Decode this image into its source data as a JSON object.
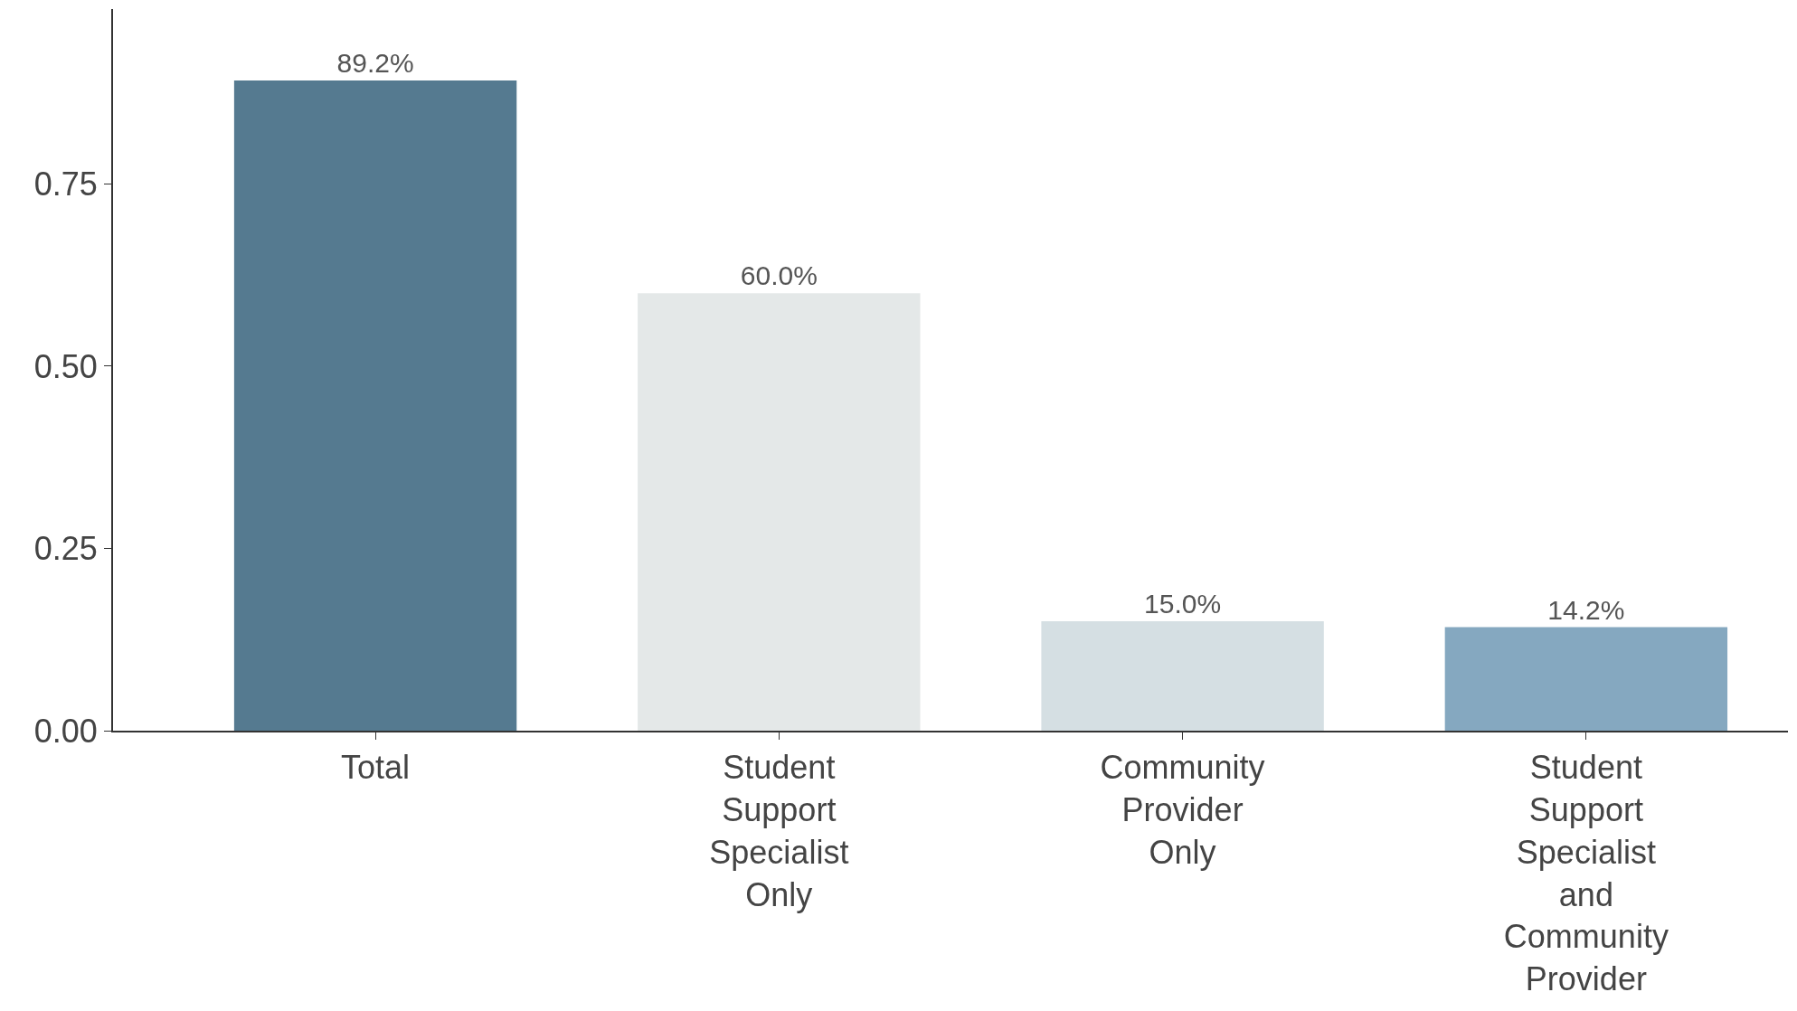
{
  "chart_data": {
    "type": "bar",
    "categories": [
      "Total",
      "Student Support Specialist Only",
      "Community Provider Only",
      "Student Support Specialist and Community Provider"
    ],
    "values": [
      0.892,
      0.6,
      0.15,
      0.142
    ],
    "colors": [
      "#557a90",
      "#e4e8e8",
      "#d5dfe3",
      "#85a8c0"
    ],
    "value_labels": [
      "89.2%",
      "60.0%",
      "15.0%",
      "14.2%"
    ],
    "ylim": [
      0,
      0.99
    ],
    "yticks": [
      {
        "value": 0,
        "label": "0.00"
      },
      {
        "value": 0.25,
        "label": "0.25"
      },
      {
        "value": 0.5,
        "label": "0.50"
      },
      {
        "value": 0.75,
        "label": "0.75"
      }
    ],
    "data_labels": false
  }
}
